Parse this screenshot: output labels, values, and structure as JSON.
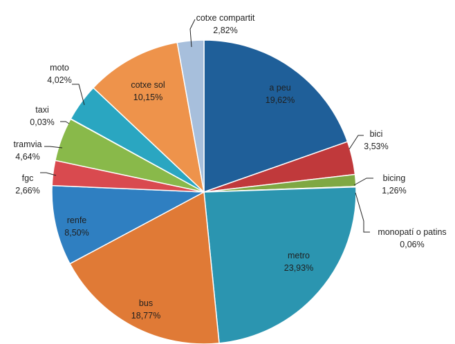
{
  "chart_data": {
    "type": "pie",
    "title": "",
    "labels": [
      "a peu",
      "bici",
      "bicing",
      "monopatí o patins",
      "metro",
      "bus",
      "renfe",
      "fgc",
      "tramvia",
      "taxi",
      "moto",
      "cotxe sol",
      "cotxe compartit"
    ],
    "values": [
      19.62,
      3.53,
      1.26,
      0.06,
      23.93,
      18.77,
      8.5,
      2.66,
      4.64,
      0.03,
      4.02,
      10.15,
      2.82
    ],
    "value_labels": [
      "19,62%",
      "3,53%",
      "1,26%",
      "0,06%",
      "23,93%",
      "18,77%",
      "8,50%",
      "2,66%",
      "4,64%",
      "0,03%",
      "4,02%",
      "10,15%",
      "2,82%"
    ],
    "colors": [
      "#1f5f99",
      "#c0393b",
      "#7fa843",
      "#7a4aa0",
      "#2b95b0",
      "#e07a36",
      "#2f7fc1",
      "#d94a4f",
      "#89b94a",
      "#8a63b3",
      "#2aa6c1",
      "#ee934b",
      "#a7bfdc"
    ],
    "legend": "none",
    "start_angle_deg": 0,
    "direction": "clockwise"
  }
}
